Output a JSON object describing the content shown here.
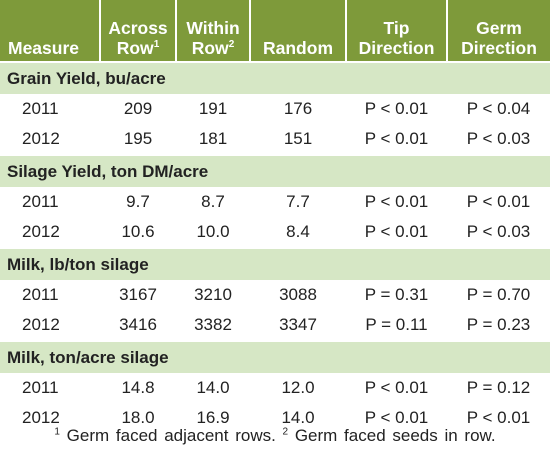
{
  "headers": [
    {
      "line1": "",
      "line2": "Measure",
      "sup": ""
    },
    {
      "line1": "Across",
      "line2": "Row",
      "sup": "1"
    },
    {
      "line1": "Within",
      "line2": "Row",
      "sup": "2"
    },
    {
      "line1": "",
      "line2": "Random",
      "sup": ""
    },
    {
      "line1": "Tip",
      "line2": "Direction",
      "sup": ""
    },
    {
      "line1": "Germ",
      "line2": "Direction",
      "sup": ""
    }
  ],
  "sections": [
    {
      "title": "Grain Yield, bu/acre",
      "rows": [
        {
          "year": "2011",
          "across": "209",
          "within": "191",
          "random": "176",
          "tip": "P < 0.01",
          "germ": "P < 0.04"
        },
        {
          "year": "2012",
          "across": "195",
          "within": "181",
          "random": "151",
          "tip": "P < 0.01",
          "germ": "P < 0.03"
        }
      ]
    },
    {
      "title": "Silage Yield, ton DM/acre",
      "rows": [
        {
          "year": "2011",
          "across": "9.7",
          "within": "8.7",
          "random": "7.7",
          "tip": "P < 0.01",
          "germ": "P < 0.01"
        },
        {
          "year": "2012",
          "across": "10.6",
          "within": "10.0",
          "random": "8.4",
          "tip": "P < 0.01",
          "germ": "P < 0.03"
        }
      ]
    },
    {
      "title": "Milk, lb/ton silage",
      "rows": [
        {
          "year": "2011",
          "across": "3167",
          "within": "3210",
          "random": "3088",
          "tip": "P = 0.31",
          "germ": "P = 0.70"
        },
        {
          "year": "2012",
          "across": "3416",
          "within": "3382",
          "random": "3347",
          "tip": "P = 0.11",
          "germ": "P = 0.23"
        }
      ]
    },
    {
      "title": "Milk, ton/acre silage",
      "rows": [
        {
          "year": "2011",
          "across": "14.8",
          "within": "14.0",
          "random": "12.0",
          "tip": "P < 0.01",
          "germ": "P = 0.12"
        },
        {
          "year": "2012",
          "across": "18.0",
          "within": "16.9",
          "random": "14.0",
          "tip": "P < 0.01",
          "germ": "P < 0.01"
        }
      ]
    }
  ],
  "footnote": {
    "sup1": "1",
    "text1": " Germ faced adjacent rows. ",
    "sup2": "2",
    "text2": " Germ faced seeds in row."
  },
  "colors": {
    "header_bg": "#7e9a3a",
    "section_bg": "#d6e7c5"
  }
}
